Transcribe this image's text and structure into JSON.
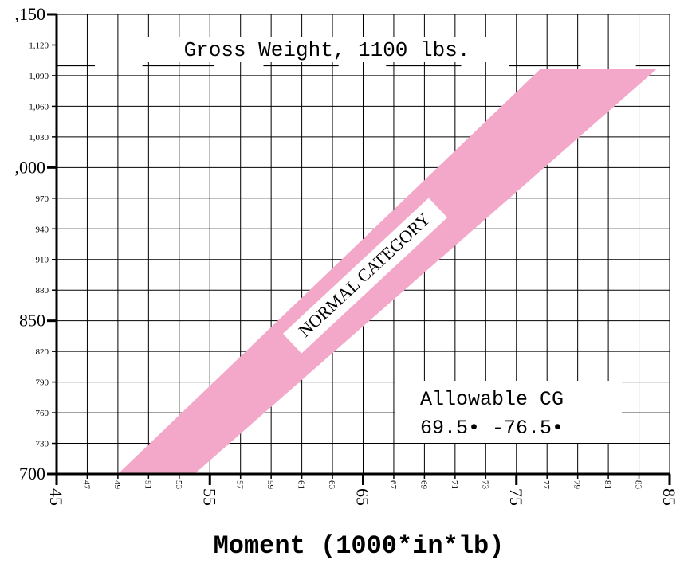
{
  "chart_data": {
    "type": "area",
    "title": "Gross Weight, 1100 lbs.",
    "xlabel": "Moment (1000*in*lb)",
    "ylabel": "",
    "xlim": [
      45,
      85
    ],
    "ylim": [
      700,
      1150
    ],
    "major_x_ticks": [
      "45",
      "55",
      "65",
      "75",
      "85"
    ],
    "minor_x_ticks": [
      "47",
      "49",
      "51",
      "53",
      "57",
      "59",
      "61",
      "63",
      "67",
      "69",
      "71",
      "73",
      "77",
      "79",
      "81",
      "83"
    ],
    "major_y_ticks": [
      ",150",
      ",000",
      "850",
      "700"
    ],
    "minor_y_ticks": [
      "1,120",
      "1,090",
      "1,060",
      "1,030",
      "970",
      "940",
      "910",
      "880",
      "820",
      "790",
      "760",
      "730"
    ],
    "grid": true,
    "envelope": {
      "name": "NORMAL CATEGORY",
      "color": "#f4a8c9",
      "points": [
        {
          "moment": 49.0,
          "weight": 700
        },
        {
          "moment": 54.0,
          "weight": 700
        },
        {
          "moment": 84.2,
          "weight": 1097
        },
        {
          "moment": 76.6,
          "weight": 1097
        }
      ]
    },
    "gross_weight_line": {
      "weight": 1100,
      "label": "Gross Weight, 1100 lbs."
    },
    "annotation": {
      "line1": "Allowable CG",
      "line2": "69.5• -76.5•"
    }
  }
}
